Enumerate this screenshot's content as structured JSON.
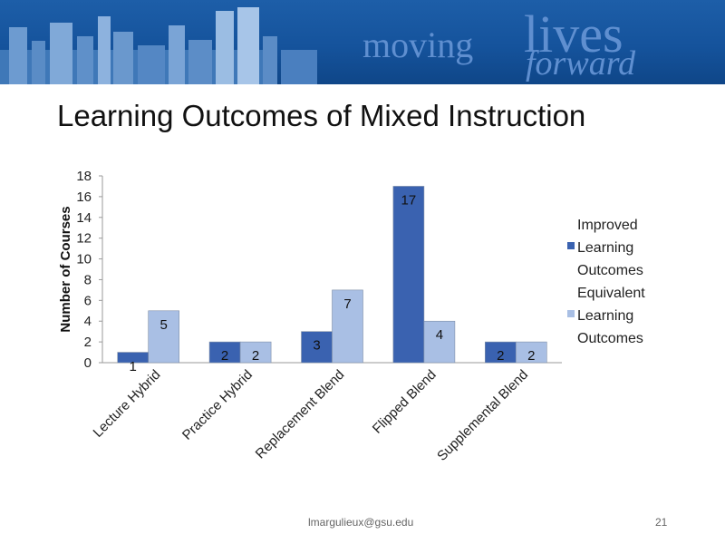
{
  "header": {
    "brand_word1": "moving",
    "brand_word2": "lives",
    "brand_word3": "forward"
  },
  "slide": {
    "title": "Learning Outcomes of Mixed Instruction",
    "footer_email": "lmargulieux@gsu.edu",
    "page_number": "21"
  },
  "chart_data": {
    "type": "bar",
    "title": "",
    "xlabel": "",
    "ylabel": "Number of Courses",
    "ylim": [
      0,
      18
    ],
    "yticks": [
      0,
      2,
      4,
      6,
      8,
      10,
      12,
      14,
      16,
      18
    ],
    "categories": [
      "Lecture Hybrid",
      "Practice Hybrid",
      "Replacement Blend",
      "Flipped Blend",
      "Supplemental Blend"
    ],
    "series": [
      {
        "name": "Improved Learning Outcomes",
        "values": [
          1,
          2,
          3,
          17,
          2
        ],
        "color": "#3a62b0"
      },
      {
        "name": "Equivalent Learning Outcomes",
        "values": [
          5,
          2,
          7,
          4,
          2
        ],
        "color": "#a9bfe4"
      }
    ],
    "legend_lines": [
      [
        "Improved",
        "Learning",
        "Outcomes"
      ],
      [
        "Equivalent",
        "Learning",
        "Outcomes"
      ]
    ],
    "legend_position": "right",
    "grid": false
  }
}
